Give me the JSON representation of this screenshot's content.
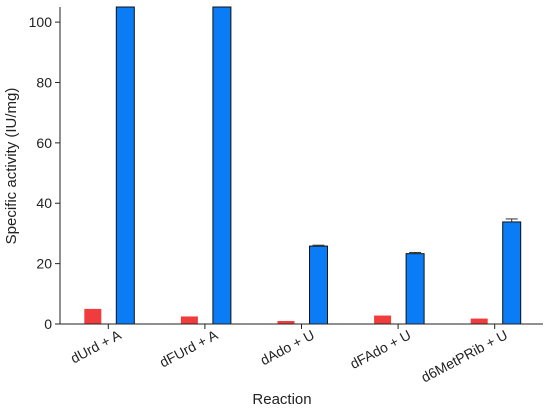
{
  "chart_data": {
    "type": "bar",
    "title": "",
    "xlabel": "Reaction",
    "ylabel": "Specific activity (IU/mg)",
    "ylim": [
      0,
      105
    ],
    "yticks": [
      0,
      20,
      40,
      60,
      80,
      100
    ],
    "grid": false,
    "legend": "none",
    "categories": [
      "dUrd + A",
      "dFUrd + A",
      "dAdo + U",
      "dFAdo + U",
      "d6MetPRib + U"
    ],
    "series": [
      {
        "color": "#f03c3c",
        "values": [
          5.0,
          2.5,
          1.0,
          2.8,
          1.8
        ],
        "errors": [
          0,
          0,
          0,
          0,
          0
        ]
      },
      {
        "color": "#0a7cf5",
        "values": [
          105,
          105,
          25.8,
          23.3,
          33.8
        ],
        "errors": [
          0,
          0,
          0.3,
          0.4,
          1.0
        ]
      }
    ]
  }
}
